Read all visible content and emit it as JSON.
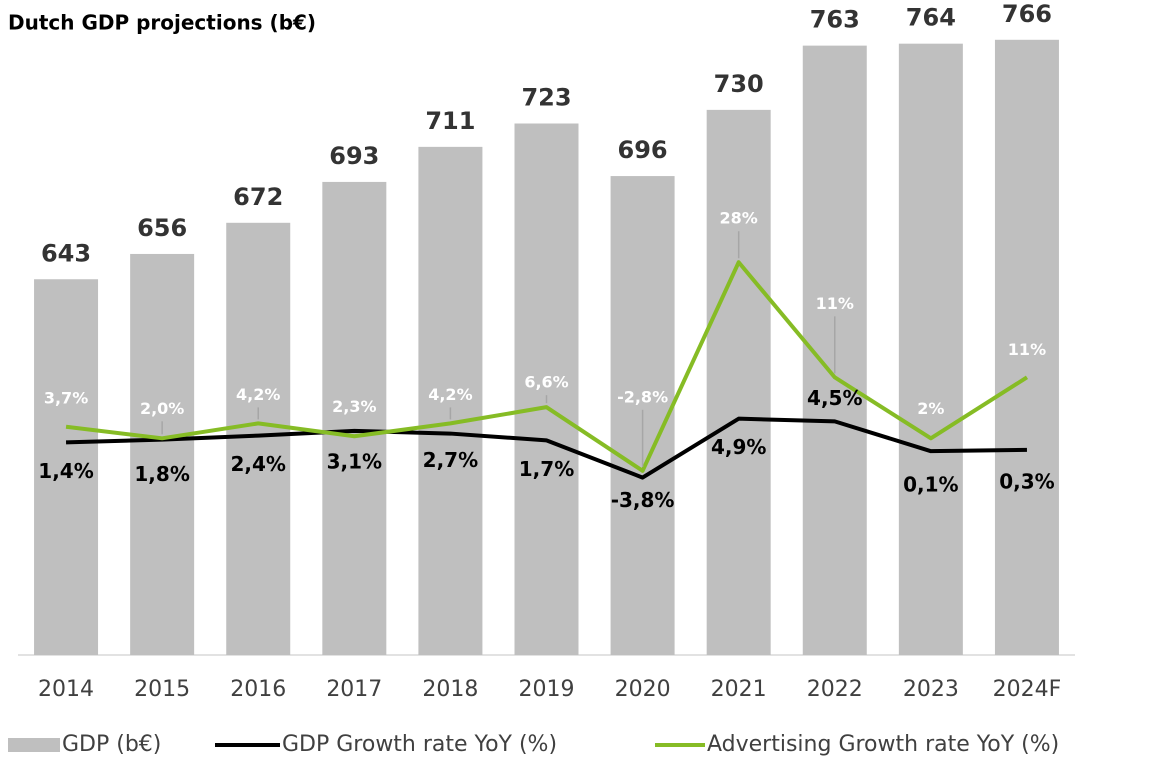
{
  "chart_data": {
    "type": "bar",
    "title": "Dutch GDP projections (b€)",
    "categories": [
      "2014",
      "2015",
      "2016",
      "2017",
      "2018",
      "2019",
      "2020",
      "2021",
      "2022",
      "2023",
      "2024F"
    ],
    "ylim": [
      450,
      770
    ],
    "y2lim": [
      -30,
      62
    ],
    "series": [
      {
        "name": "GDP (b€)",
        "type": "bar",
        "color": "#bfbfbf",
        "values": [
          643,
          656,
          672,
          693,
          711,
          723,
          696,
          730,
          763,
          764,
          766
        ]
      },
      {
        "name": "GDP Growth rate YoY (%)",
        "type": "line",
        "axis": "y2",
        "color": "#000000",
        "values": [
          1.4,
          1.8,
          2.4,
          3.1,
          2.7,
          1.7,
          -3.8,
          4.9,
          4.5,
          0.1,
          0.3
        ],
        "value_labels": [
          "1,4%",
          "1,8%",
          "2,4%",
          "3,1%",
          "2,7%",
          "1,7%",
          "-3,8%",
          "4,9%",
          "4,5%",
          "0,1%",
          "0,3%"
        ]
      },
      {
        "name": "Advertising Growth rate YoY (%)",
        "type": "line",
        "axis": "y2",
        "color": "#86bc25",
        "values": [
          3.7,
          2.0,
          4.2,
          2.3,
          4.2,
          6.6,
          -2.8,
          28,
          11,
          2,
          11
        ],
        "value_labels": [
          "3,7%",
          "2,0%",
          "4,2%",
          "2,3%",
          "4,2%",
          "6,6%",
          "-2,8%",
          "28%",
          "11%",
          "2%",
          "11%"
        ]
      }
    ]
  }
}
